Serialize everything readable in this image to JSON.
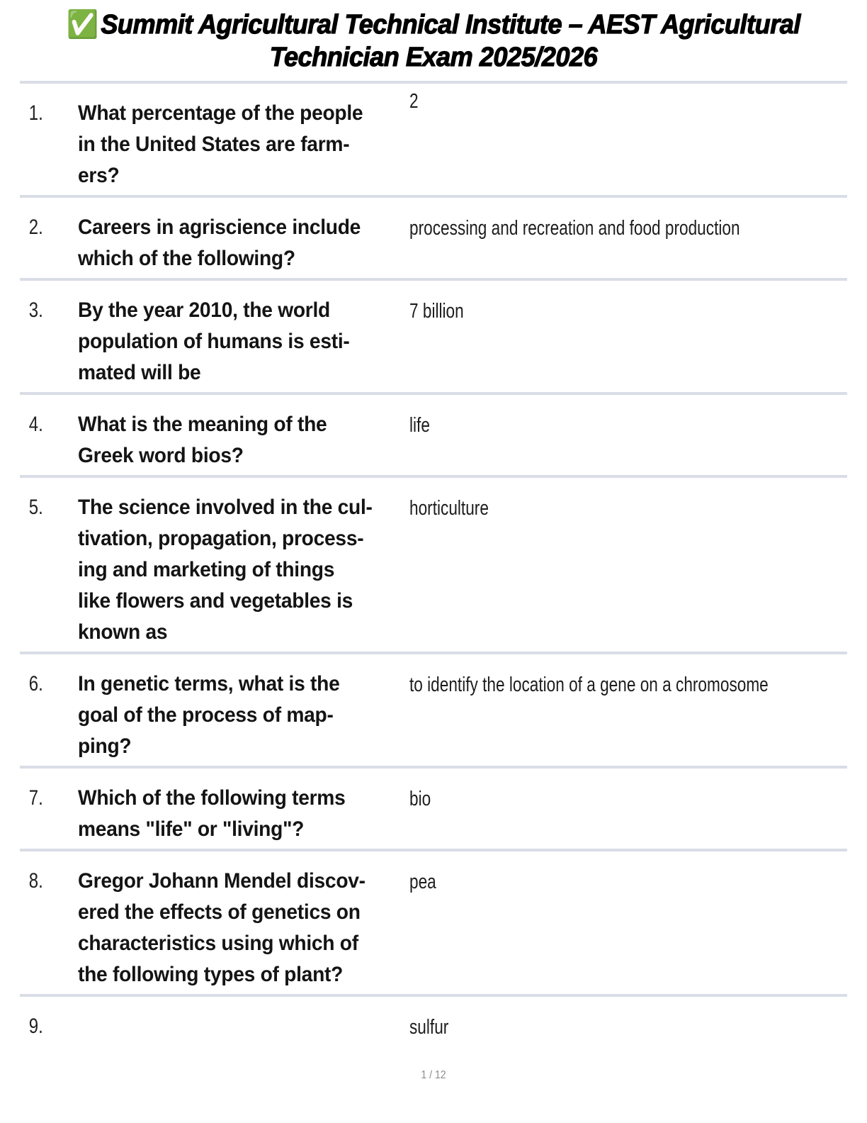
{
  "header": {
    "check_icon": "✅",
    "title_line1": "Summit Agricultural Technical Institute – AEST Agricultural",
    "title_line2": "Technician Exam 2025/2026"
  },
  "questions": [
    {
      "number": "1.",
      "text": "What percentage of the people\nin the United States are farm-\ners?",
      "answer": "2"
    },
    {
      "number": "2.",
      "text": "Careers in agriscience include\nwhich of the following?",
      "answer": "processing and recreation and food production"
    },
    {
      "number": "3.",
      "text": "By the year 2010, the world\npopulation of humans is esti-\nmated will be",
      "answer": "7 billion"
    },
    {
      "number": "4.",
      "text": "What is the meaning of the\nGreek word bios?",
      "answer": "life"
    },
    {
      "number": "5.",
      "text": "The science involved in the cul-\ntivation, propagation, process-\ning and marketing of things\nlike flowers and vegetables is\nknown as",
      "answer": "horticulture"
    },
    {
      "number": "6.",
      "text": "In genetic terms, what is the\ngoal of the process of map-\nping?",
      "answer": "to identify the location of a gene on a chromosome"
    },
    {
      "number": "7.",
      "text": "Which of the following terms\nmeans \"life\" or \"living\"?",
      "answer": "bio"
    },
    {
      "number": "8.",
      "text": "Gregor Johann Mendel discov-\nered the effects of genetics on\ncharacteristics using which of\nthe following types of plant?",
      "answer": "pea"
    },
    {
      "number": "9.",
      "text": "",
      "answer": "sulfur"
    }
  ],
  "footer": {
    "page_indicator": "1 / 12"
  },
  "colors": {
    "divider": "#d9dde6",
    "question_text": "#141414",
    "footer_text": "#8c8c8c",
    "background": "#ffffff"
  }
}
